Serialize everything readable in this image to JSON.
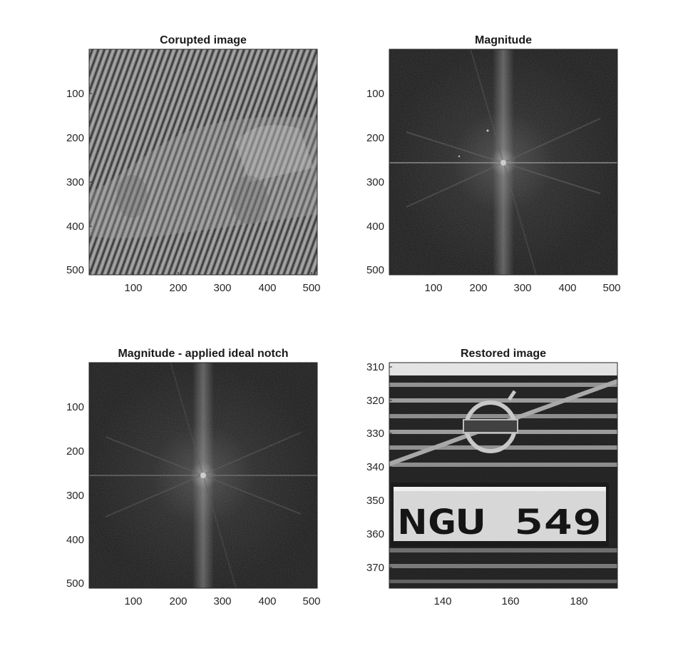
{
  "figure": {
    "panels": [
      {
        "title": "Corupted image",
        "kind": "corrupted",
        "xticks": [
          "100",
          "200",
          "300",
          "400",
          "500"
        ],
        "yticks": [
          "100",
          "200",
          "300",
          "400",
          "500"
        ]
      },
      {
        "title": "Magnitude",
        "kind": "spectrum",
        "xticks": [
          "100",
          "200",
          "300",
          "400",
          "500"
        ],
        "yticks": [
          "100",
          "200",
          "300",
          "400",
          "500"
        ]
      },
      {
        "title": "Magnitude - applied ideal notch",
        "kind": "spectrum",
        "xticks": [
          "100",
          "200",
          "300",
          "400",
          "500"
        ],
        "yticks": [
          "100",
          "200",
          "300",
          "400",
          "500"
        ]
      },
      {
        "title": "Restored image",
        "kind": "restored",
        "xticks": [
          "140",
          "160",
          "180"
        ],
        "yticks": [
          "310",
          "320",
          "330",
          "340",
          "350",
          "360",
          "370"
        ],
        "plate_text": "NGU  549"
      }
    ]
  }
}
